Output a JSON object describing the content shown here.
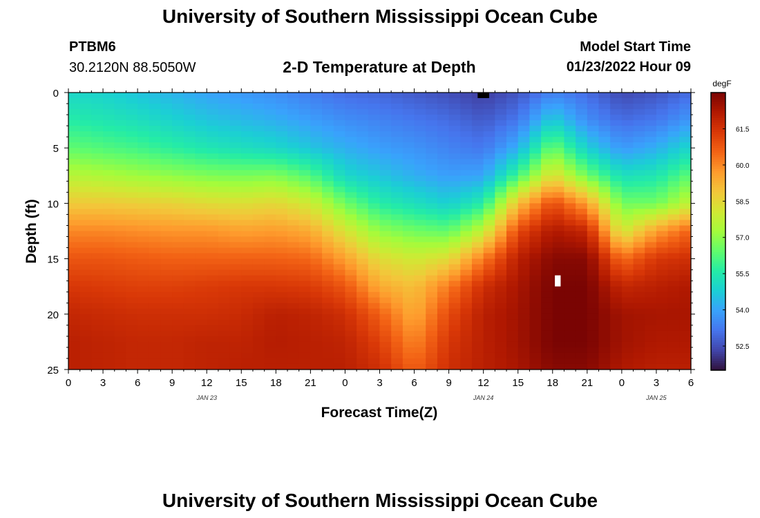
{
  "header": {
    "title": "University of Southern Mississippi Ocean Cube",
    "station_id": "PTBM6",
    "coordinates": "30.2120N  88.5050W",
    "model_start_label": "Model Start Time",
    "model_start_value": "01/23/2022 Hour 09"
  },
  "footer": {
    "title": "University of Southern Mississippi Ocean Cube"
  },
  "colors": {
    "colormap": [
      "#30123b",
      "#4145ab",
      "#4675ed",
      "#39a2fc",
      "#1bcfd4",
      "#24eca6",
      "#61fc6c",
      "#a4fc3b",
      "#d1e834",
      "#f3c63a",
      "#fe9b2d",
      "#f36315",
      "#d93807",
      "#b11901",
      "#7a0403"
    ],
    "missing_mask_top": "#000000",
    "missing_mask_interior": "#ffffff"
  },
  "chart_data": {
    "type": "heatmap",
    "title": "2-D Temperature at Depth",
    "xlabel": "Forecast Time(Z)",
    "ylabel": "Depth (ft)",
    "x_unit": "hours since Jan 23 00Z",
    "xlim": [
      0,
      54
    ],
    "ylim": [
      0,
      25
    ],
    "y_inverted": true,
    "x_ticks": [
      0,
      3,
      6,
      9,
      12,
      15,
      18,
      21,
      24,
      27,
      30,
      33,
      36,
      39,
      42,
      45,
      48,
      51,
      54
    ],
    "x_tick_labels": [
      "0",
      "3",
      "6",
      "9",
      "12",
      "15",
      "18",
      "21",
      "0",
      "3",
      "6",
      "9",
      "12",
      "15",
      "18",
      "21",
      "0",
      "3",
      "6"
    ],
    "y_ticks": [
      0,
      5,
      10,
      15,
      20,
      25
    ],
    "y_tick_labels": [
      "0",
      "5",
      "10",
      "15",
      "20",
      "25"
    ],
    "date_labels": [
      {
        "hour": 12,
        "label": "JAN 23"
      },
      {
        "hour": 36,
        "label": "JAN 24"
      },
      {
        "hour": 51,
        "label": "JAN 25"
      }
    ],
    "colorbar": {
      "unit": "degF",
      "vmin": 51.5,
      "vmax": 63.0,
      "ticks": [
        52.5,
        54.0,
        55.5,
        57.0,
        58.5,
        60.0,
        61.5
      ],
      "tick_labels": [
        "52.5",
        "54.0",
        "55.5",
        "57.0",
        "58.5",
        "60.0",
        "61.5"
      ]
    },
    "grid_spacing": {
      "time_hours": 1,
      "depth_ft": 0.5
    },
    "profile_depths_ft": [
      0,
      2.5,
      5,
      7.5,
      10,
      12.5,
      15,
      17.5,
      20,
      22.5,
      25
    ],
    "profiles": [
      {
        "hour": 0,
        "temps": [
          55.0,
          55.6,
          56.4,
          57.6,
          58.8,
          60.0,
          60.8,
          61.4,
          61.8,
          62.0,
          62.0
        ]
      },
      {
        "hour": 3,
        "temps": [
          54.9,
          55.4,
          56.2,
          57.4,
          58.8,
          60.0,
          60.8,
          61.3,
          61.7,
          61.9,
          61.9
        ]
      },
      {
        "hour": 6,
        "temps": [
          54.6,
          55.2,
          56.0,
          57.2,
          58.7,
          59.9,
          60.7,
          61.2,
          61.6,
          61.8,
          61.8
        ]
      },
      {
        "hour": 9,
        "temps": [
          54.3,
          54.9,
          55.7,
          57.0,
          58.6,
          59.8,
          60.6,
          61.2,
          61.6,
          61.8,
          61.8
        ]
      },
      {
        "hour": 12,
        "temps": [
          54.0,
          54.6,
          55.4,
          56.8,
          58.4,
          59.8,
          60.6,
          61.3,
          61.6,
          61.9,
          61.9
        ]
      },
      {
        "hour": 15,
        "temps": [
          53.8,
          54.4,
          55.2,
          56.7,
          58.3,
          59.6,
          60.6,
          61.4,
          61.7,
          61.9,
          62.0
        ]
      },
      {
        "hour": 18,
        "temps": [
          53.6,
          54.2,
          55.0,
          56.8,
          58.5,
          59.7,
          60.6,
          61.4,
          62.0,
          62.1,
          62.0
        ]
      },
      {
        "hour": 21,
        "temps": [
          53.3,
          53.9,
          54.6,
          56.2,
          58.0,
          59.4,
          60.5,
          61.3,
          61.9,
          62.0,
          62.0
        ]
      },
      {
        "hour": 24,
        "temps": [
          53.0,
          53.6,
          54.2,
          55.0,
          56.6,
          58.2,
          59.6,
          60.8,
          61.6,
          61.9,
          62.0
        ]
      },
      {
        "hour": 27,
        "temps": [
          52.9,
          53.4,
          53.9,
          54.6,
          55.6,
          57.0,
          58.4,
          59.4,
          60.6,
          61.2,
          61.6
        ]
      },
      {
        "hour": 30,
        "temps": [
          52.7,
          53.2,
          53.7,
          54.2,
          55.2,
          56.6,
          58.0,
          59.0,
          59.4,
          60.0,
          60.6
        ]
      },
      {
        "hour": 33,
        "temps": [
          52.5,
          53.0,
          53.4,
          53.9,
          54.8,
          56.4,
          58.4,
          60.2,
          61.0,
          61.4,
          61.6
        ]
      },
      {
        "hour": 36,
        "temps": [
          52.2,
          52.7,
          53.2,
          54.0,
          55.6,
          57.8,
          60.2,
          61.6,
          62.0,
          62.0,
          62.0
        ]
      },
      {
        "hour": 39,
        "temps": [
          52.6,
          53.2,
          54.2,
          56.0,
          59.0,
          61.0,
          62.0,
          62.3,
          62.4,
          62.4,
          62.3
        ]
      },
      {
        "hour": 42,
        "temps": [
          53.4,
          54.8,
          56.6,
          58.4,
          61.0,
          62.2,
          62.8,
          63.0,
          63.0,
          63.0,
          62.8
        ]
      },
      {
        "hour": 45,
        "temps": [
          53.0,
          53.6,
          54.8,
          56.6,
          59.6,
          61.8,
          62.8,
          63.0,
          63.0,
          63.0,
          62.8
        ]
      },
      {
        "hour": 48,
        "temps": [
          52.4,
          53.0,
          53.8,
          55.2,
          56.6,
          58.0,
          60.4,
          61.8,
          62.4,
          62.4,
          62.2
        ]
      },
      {
        "hour": 51,
        "temps": [
          52.6,
          53.2,
          54.2,
          55.4,
          56.6,
          59.6,
          61.4,
          62.0,
          62.3,
          62.2,
          62.0
        ]
      },
      {
        "hour": 54,
        "temps": [
          53.0,
          53.8,
          55.0,
          56.4,
          57.8,
          60.6,
          61.6,
          62.2,
          62.3,
          62.2,
          62.0
        ]
      }
    ],
    "missing_cells": [
      {
        "hour_start": 35.5,
        "hour_end": 36.5,
        "depth_start": 0,
        "depth_end": 0.5,
        "color": "black"
      },
      {
        "hour_start": 42.2,
        "hour_end": 42.7,
        "depth_start": 16.5,
        "depth_end": 17.5,
        "color": "white"
      }
    ]
  }
}
